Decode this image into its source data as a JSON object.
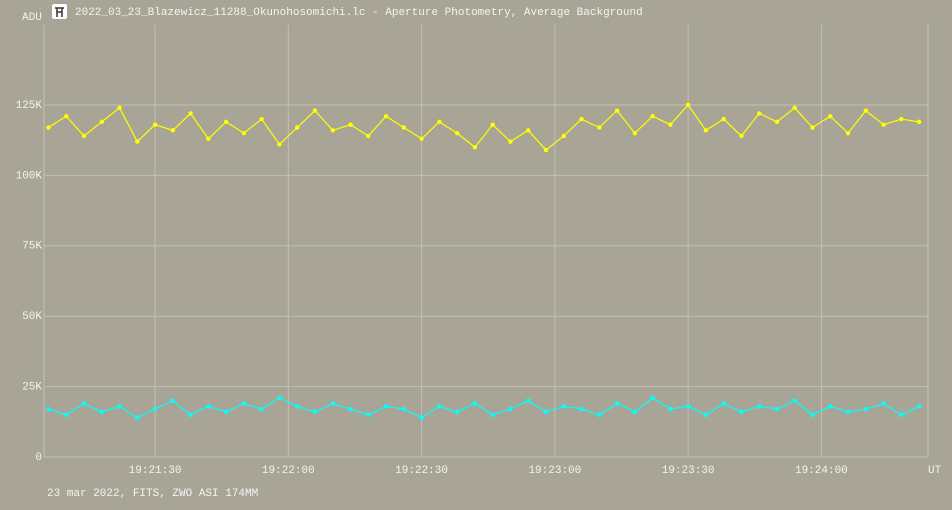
{
  "chart_data": {
    "type": "line",
    "title": "2022_03_23_Blazewicz_11288_Okunohosomichi.lc - Aperture Photometry, Average Background",
    "y_label": "ADU",
    "x_label": "UT",
    "footer": "23 mar 2022, FITS, ZWO ASI 174MM",
    "x": [
      69666,
      69670,
      69674,
      69678,
      69682,
      69686,
      69690,
      69694,
      69698,
      69702,
      69706,
      69710,
      69714,
      69718,
      69722,
      69726,
      69730,
      69734,
      69738,
      69742,
      69746,
      69750,
      69754,
      69758,
      69762,
      69766,
      69770,
      69774,
      69778,
      69782,
      69786,
      69790,
      69794,
      69798,
      69802,
      69806,
      69810,
      69814,
      69818,
      69822,
      69826,
      69830,
      69834,
      69838,
      69842,
      69846,
      69850,
      69854,
      69858,
      69862
    ],
    "series": [
      {
        "color": "#ffff00",
        "values": [
          117000,
          121000,
          114000,
          119000,
          124000,
          112000,
          118000,
          116000,
          122000,
          113000,
          119000,
          115000,
          120000,
          111000,
          117000,
          123000,
          116000,
          118000,
          114000,
          121000,
          117000,
          113000,
          119000,
          115000,
          110000,
          118000,
          112000,
          116000,
          109000,
          114000,
          120000,
          117000,
          123000,
          115000,
          121000,
          118000,
          125000,
          116000,
          120000,
          114000,
          122000,
          119000,
          124000,
          117000,
          121000,
          115000,
          123000,
          118000,
          120000,
          119000
        ]
      },
      {
        "color": "#00ffff",
        "values": [
          17000,
          15000,
          19000,
          16000,
          18000,
          14000,
          17000,
          20000,
          15000,
          18000,
          16000,
          19000,
          17000,
          21000,
          18000,
          16000,
          19000,
          17000,
          15000,
          18000,
          17000,
          14000,
          18000,
          16000,
          19000,
          15000,
          17000,
          20000,
          16000,
          18000,
          17000,
          15000,
          19000,
          16000,
          21000,
          17000,
          18000,
          15000,
          19000,
          16000,
          18000,
          17000,
          20000,
          15000,
          18000,
          16000,
          17000,
          19000,
          15000,
          18000
        ]
      }
    ],
    "xlim": [
      69665,
      69864
    ],
    "xticks": [
      {
        "value": 69690,
        "label": "19:21:30"
      },
      {
        "value": 69720,
        "label": "19:22:00"
      },
      {
        "value": 69750,
        "label": "19:22:30"
      },
      {
        "value": 69780,
        "label": "19:23:00"
      },
      {
        "value": 69810,
        "label": "19:23:30"
      },
      {
        "value": 69840,
        "label": "19:24:00"
      }
    ],
    "ylim": [
      0,
      153400
    ],
    "yticks": [
      0,
      {
        "value": 25000,
        "label": "25K"
      },
      {
        "value": 50000,
        "label": "50K"
      },
      {
        "value": 75000,
        "label": "75K"
      },
      {
        "value": 100000,
        "label": "100K"
      },
      {
        "value": 125000,
        "label": "125K"
      }
    ],
    "grid": true
  }
}
